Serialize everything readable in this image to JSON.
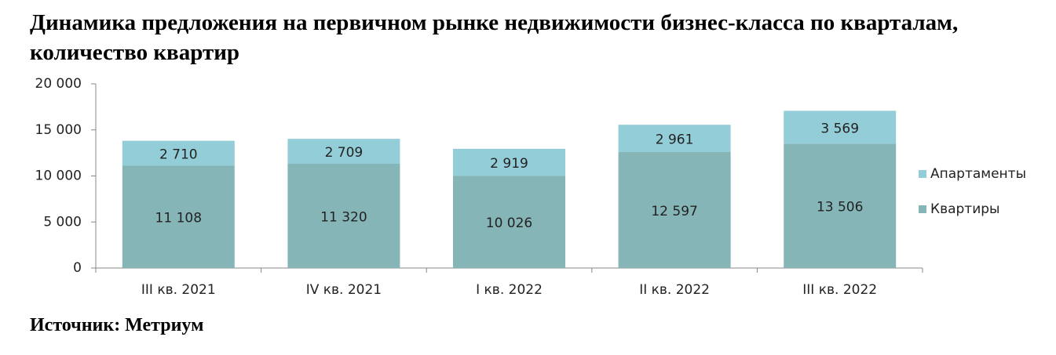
{
  "chart_data": {
    "type": "stacked_bar",
    "title": "Динамика предложения на первичном рынке недвижимости бизнес-класса по кварталам, количество квартир",
    "source": "Источник: Метриум",
    "categories": [
      "III кв. 2021",
      "IV кв. 2021",
      "I кв. 2022",
      "II кв. 2022",
      "III кв. 2022"
    ],
    "series": [
      {
        "name": "Квартиры",
        "color": "#86b5b8",
        "values": [
          11108,
          11320,
          10026,
          12597,
          13506
        ],
        "value_labels": [
          "11 108",
          "11 320",
          "10 026",
          "12 597",
          "13 506"
        ]
      },
      {
        "name": "Апартаменты",
        "color": "#93cdd7",
        "values": [
          2710,
          2709,
          2919,
          2961,
          3569
        ],
        "value_labels": [
          "2 710",
          "2 709",
          "2 919",
          "2 961",
          "3 569"
        ]
      }
    ],
    "ylim": [
      0,
      20000
    ],
    "yticks": [
      {
        "value": 0,
        "label": "0"
      },
      {
        "value": 5000,
        "label": "5 000"
      },
      {
        "value": 10000,
        "label": "10 000"
      },
      {
        "value": 15000,
        "label": "15 000"
      },
      {
        "value": 20000,
        "label": "20 000"
      }
    ],
    "legend": "right"
  }
}
